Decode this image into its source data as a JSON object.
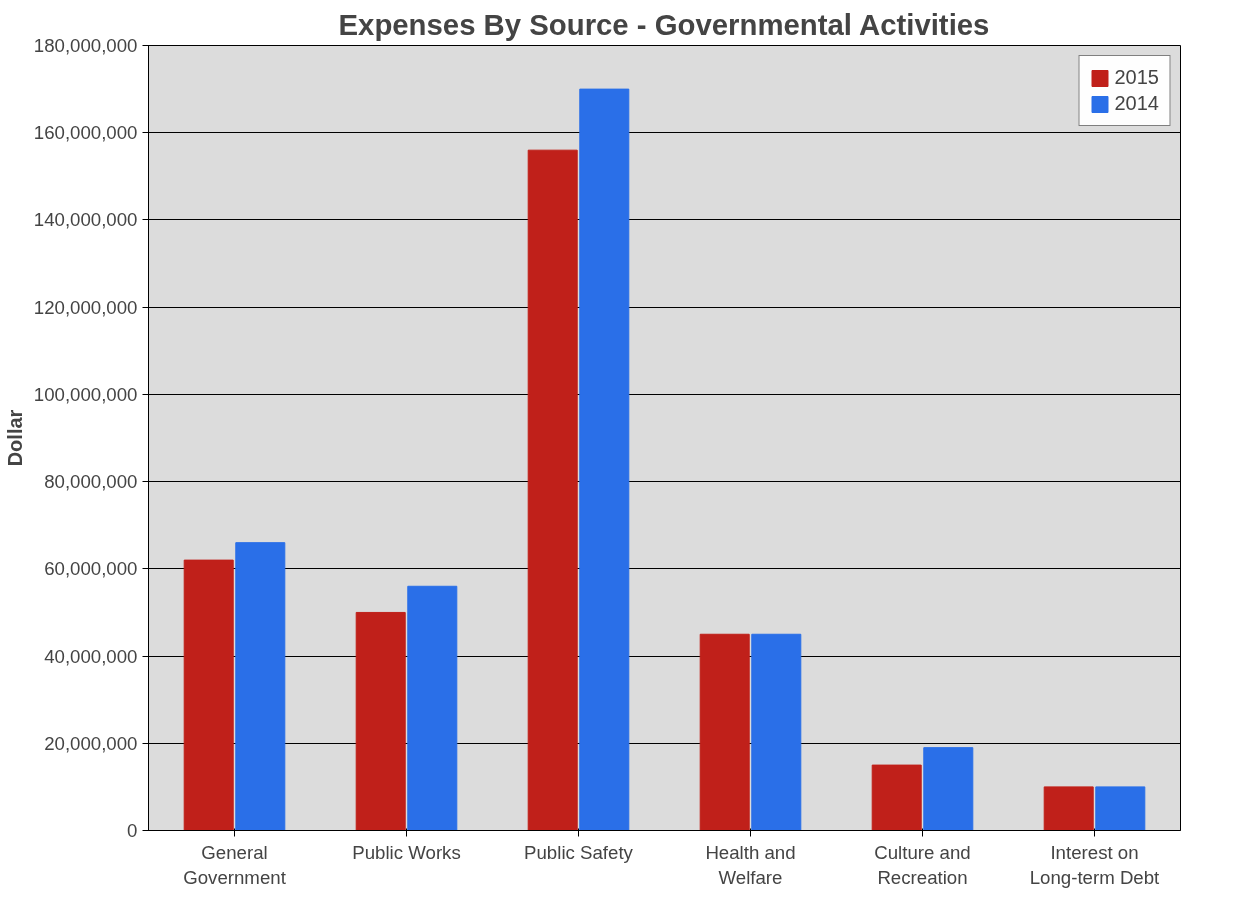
{
  "chart_data": {
    "type": "bar",
    "title": "Expenses By Source - Governmental Activities",
    "ylabel": "Dollar",
    "categories": [
      "General Government",
      "Public Works",
      "Public Safety",
      "Health and Welfare",
      "Culture and Recreation",
      "Interest on Long-term Debt"
    ],
    "series": [
      {
        "name": "2015",
        "color": "#c0201a",
        "values": [
          62000000,
          50000000,
          156000000,
          45000000,
          15000000,
          10000000
        ]
      },
      {
        "name": "2014",
        "color": "#2a6fe8",
        "values": [
          66000000,
          56000000,
          170000000,
          45000000,
          19000000,
          10000000
        ]
      }
    ],
    "ylim": [
      0,
      180000000
    ],
    "yticks": [
      {
        "value": 0,
        "label": "0"
      },
      {
        "value": 20000000,
        "label": "20,000,000"
      },
      {
        "value": 40000000,
        "label": "40,000,000"
      },
      {
        "value": 60000000,
        "label": "60,000,000"
      },
      {
        "value": 80000000,
        "label": "80,000,000"
      },
      {
        "value": 100000000,
        "label": "100,000,000"
      },
      {
        "value": 120000000,
        "label": "120,000,000"
      },
      {
        "value": 140000000,
        "label": "140,000,000"
      },
      {
        "value": 160000000,
        "label": "160,000,000"
      },
      {
        "value": 180000000,
        "label": "180,000,000"
      }
    ],
    "grid": "y",
    "legend": "top right"
  }
}
